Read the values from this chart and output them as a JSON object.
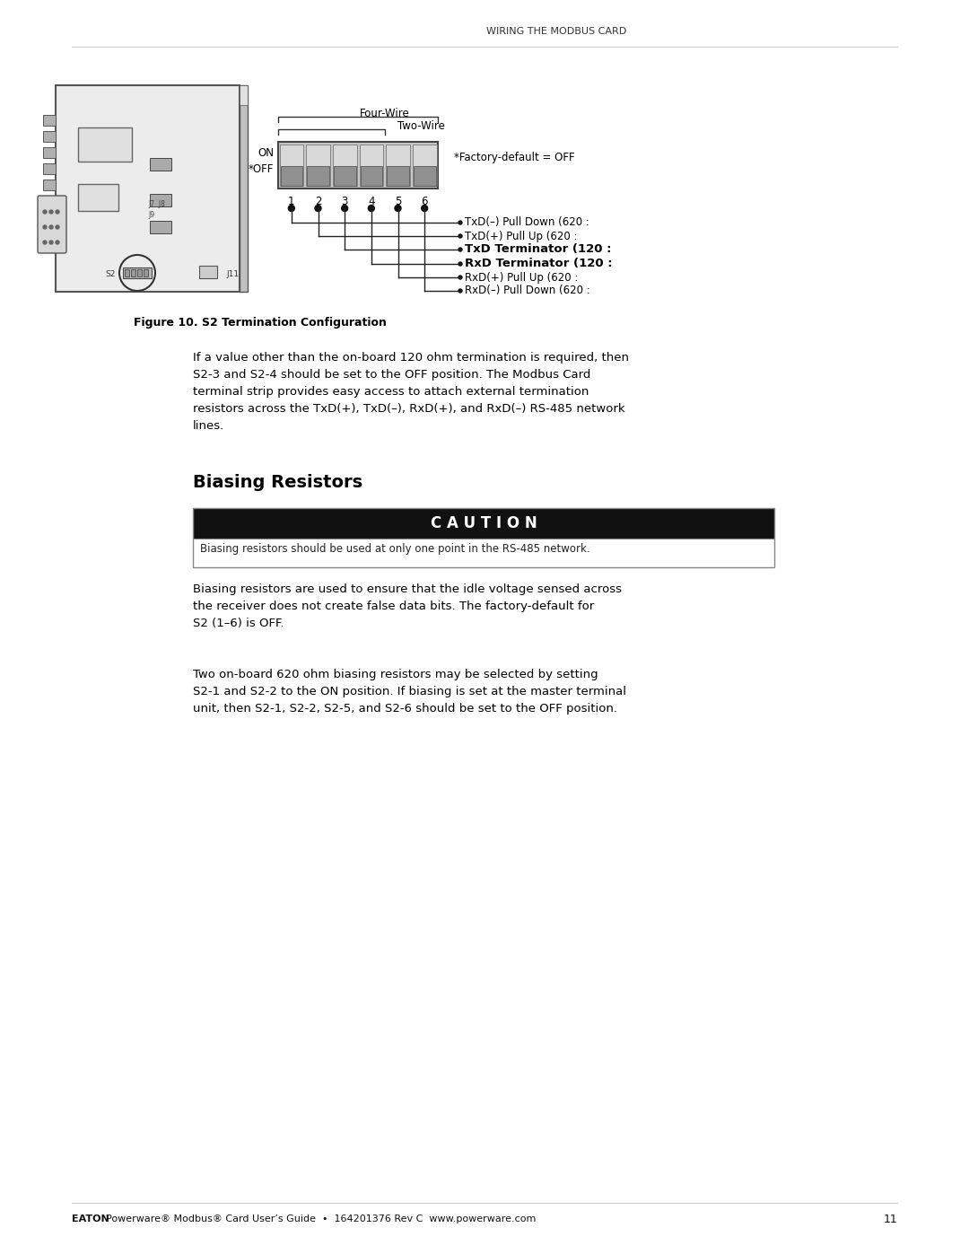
{
  "page_title": "WIRING THE MODBUS CARD",
  "fig_caption": "Figure 10. S2 Termination Configuration",
  "section_heading": "Biasing Resistors",
  "caution_label": "C A U T I O N",
  "caution_text": "Biasing resistors should be used at only one point in the RS-485 network.",
  "para1": "Biasing resistors are used to ensure that the idle voltage sensed across\nthe receiver does not create false data bits. The factory-default for\nS2 (1–6) is OFF.",
  "para2": "Two on-board 620 ohm biasing resistors may be selected by setting\nS2-1 and S2-2 to the ON position. If biasing is set at the master terminal\nunit, then S2-1, S2-2, S2-5, and S2-6 should be set to the OFF position.",
  "intro_para": "If a value other than the on-board 120 ohm termination is required, then\nS2-3 and S2-4 should be set to the OFF position. The Modbus Card\nterminal strip provides easy access to attach external termination\nresistors across the TxD(+), TxD(–), RxD(+), and RxD(–) RS-485 network\nlines.",
  "footer_left": "Powerware® Modbus® Card User’s Guide  •  164201376 Rev C  www.powerware.com",
  "footer_eaton": "EATON",
  "footer_page": "11",
  "bg_color": "#ffffff",
  "text_color": "#000000",
  "caution_bg": "#111111",
  "caution_fg": "#ffffff",
  "caution_border": "#888888",
  "switch_numbers": [
    "1",
    "2",
    "3",
    "4",
    "5",
    "6"
  ],
  "right_labels": [
    "TxD(–) Pull Down (620 :",
    "TxD(+) Pull Up (620 :",
    "TxD Terminator (120 :",
    "RxD Terminator (120 :",
    "RxD(+) Pull Up (620 :",
    "RxD(–) Pull Down (620 :"
  ],
  "right_labels_bold": [
    false,
    false,
    true,
    true,
    false,
    false
  ],
  "factory_note": "*Factory-default = OFF",
  "four_wire_label": "Four-Wire",
  "two_wire_label": "Two-Wire",
  "on_label": "ON",
  "off_label": "*OFF"
}
